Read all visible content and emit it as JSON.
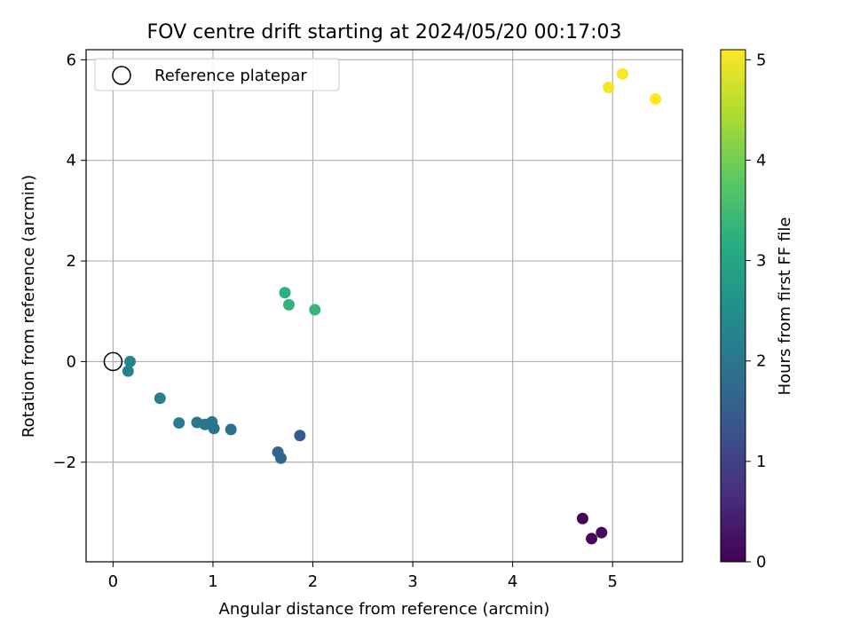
{
  "chart_data": {
    "type": "scatter",
    "title": "FOV centre drift starting at 2024/05/20 00:17:03",
    "xlabel": "Angular distance from reference (arcmin)",
    "ylabel": "Rotation from reference (arcmin)",
    "xlim": [
      -0.27,
      5.7
    ],
    "ylim": [
      -3.98,
      6.2
    ],
    "xticks": [
      0,
      1,
      2,
      3,
      4,
      5
    ],
    "yticks": [
      -2,
      0,
      2,
      4,
      6
    ],
    "grid": true,
    "legend": {
      "location": "upper-left",
      "entries": [
        "Reference platepar"
      ]
    },
    "reference_point": {
      "x": 0.0,
      "y": 0.0,
      "label": "Reference platepar"
    },
    "colorbar": {
      "label": "Hours from first FF file",
      "range": [
        0,
        5.1
      ],
      "ticks": [
        0,
        1,
        2,
        3,
        4,
        5
      ],
      "colormap": "viridis"
    },
    "points": [
      {
        "x": 4.7,
        "y": -3.12,
        "hours": 0.03
      },
      {
        "x": 4.79,
        "y": -3.52,
        "hours": 0.08
      },
      {
        "x": 4.89,
        "y": -3.4,
        "hours": 0.13
      },
      {
        "x": 1.87,
        "y": -1.47,
        "hours": 1.45
      },
      {
        "x": 1.65,
        "y": -1.8,
        "hours": 1.65
      },
      {
        "x": 1.68,
        "y": -1.92,
        "hours": 1.7
      },
      {
        "x": 1.18,
        "y": -1.35,
        "hours": 1.88
      },
      {
        "x": 1.01,
        "y": -1.33,
        "hours": 1.95
      },
      {
        "x": 0.99,
        "y": -1.2,
        "hours": 1.98
      },
      {
        "x": 0.92,
        "y": -1.25,
        "hours": 2.0
      },
      {
        "x": 0.84,
        "y": -1.21,
        "hours": 2.02
      },
      {
        "x": 0.66,
        "y": -1.22,
        "hours": 2.08
      },
      {
        "x": 0.47,
        "y": -0.73,
        "hours": 2.15
      },
      {
        "x": 0.15,
        "y": -0.19,
        "hours": 2.25
      },
      {
        "x": 0.17,
        "y": 0.0,
        "hours": 2.28
      },
      {
        "x": 1.72,
        "y": 1.37,
        "hours": 3.25
      },
      {
        "x": 1.76,
        "y": 1.13,
        "hours": 3.3
      },
      {
        "x": 2.02,
        "y": 1.03,
        "hours": 3.38
      },
      {
        "x": 4.96,
        "y": 5.45,
        "hours": 5.05
      },
      {
        "x": 5.1,
        "y": 5.72,
        "hours": 5.08
      },
      {
        "x": 5.43,
        "y": 5.22,
        "hours": 5.1
      }
    ]
  }
}
